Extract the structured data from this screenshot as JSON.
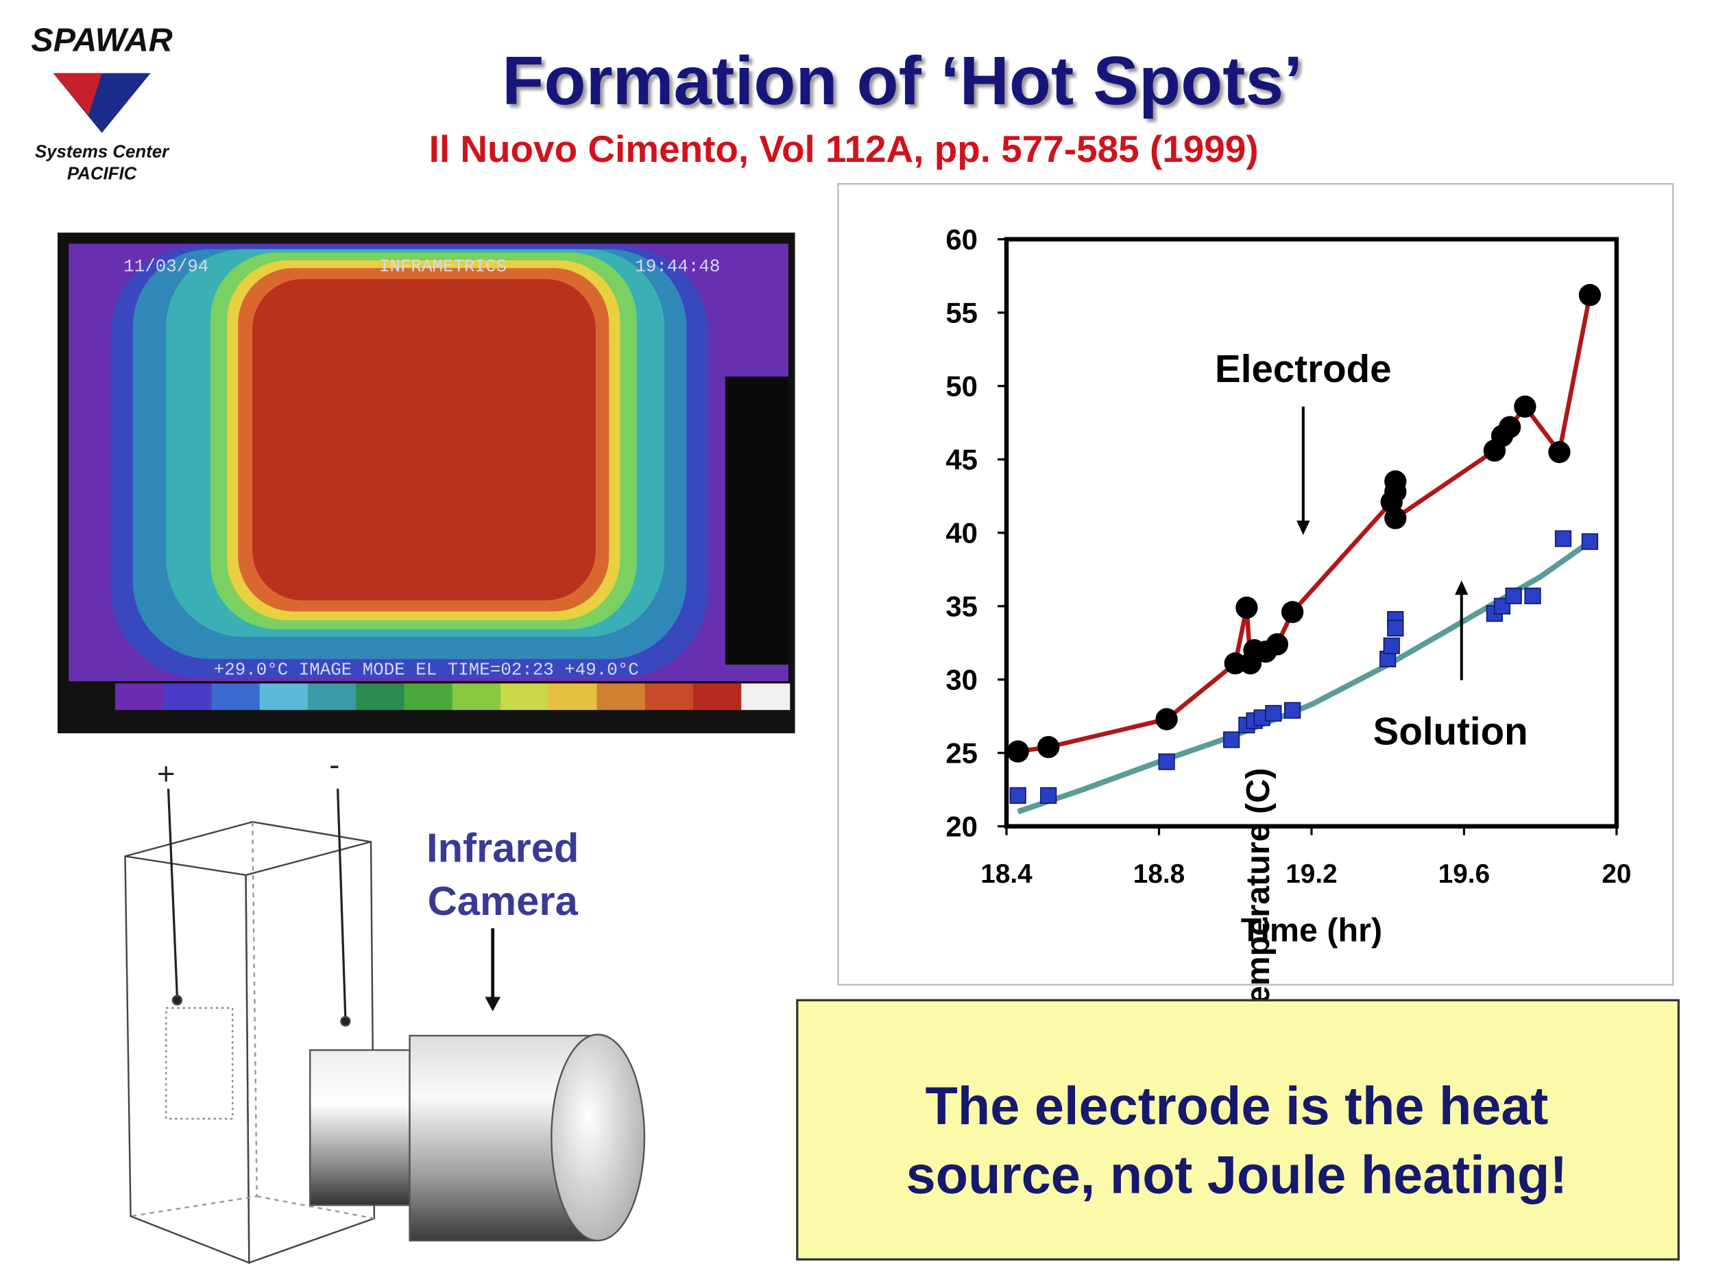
{
  "header": {
    "title": "Formation of ‘Hot Spots’",
    "subtitle": "Il Nuovo Cimento, Vol 112A, pp. 577-585 (1999)"
  },
  "logo": {
    "name": "SPAWAR",
    "line1": "Systems Center",
    "line2": "PACIFIC"
  },
  "thermal_image": {
    "date": "11/03/94",
    "brand": "INFRAMETRICS",
    "time": "19:44:48",
    "status": "+29.0°C IMAGE MODE EL TIME=02:23 +49.0°C"
  },
  "cell_diagram": {
    "plus": "+",
    "minus": "-"
  },
  "camera_label": [
    "Infrared",
    "Camera"
  ],
  "callout": [
    "The electrode is the heat",
    "source, not Joule heating!"
  ],
  "chart_data": {
    "type": "scatter",
    "x_label": "Time (hr)",
    "y_label": "Temperature (C)",
    "annotations": [
      "Electrode",
      "Solution"
    ],
    "xlim": [
      18.4,
      20
    ],
    "ylim": [
      20,
      60
    ],
    "xticks": [
      18.4,
      18.8,
      19.2,
      19.6,
      20
    ],
    "yticks": [
      20,
      25,
      30,
      35,
      40,
      45,
      50,
      55,
      60
    ],
    "series": [
      {
        "line_color": "#b01818",
        "marker": "circle",
        "marker_color": "#000000",
        "x": [
          18.43,
          18.51,
          18.82,
          19.0,
          19.03,
          19.04,
          19.05,
          19.08,
          19.11,
          19.15,
          19.41,
          19.42,
          19.42,
          19.42,
          19.68,
          19.7,
          19.72,
          19.76,
          19.85,
          19.93
        ],
        "values": [
          25.1,
          25.4,
          27.3,
          31.1,
          34.9,
          31.1,
          32.0,
          31.9,
          32.4,
          34.6,
          42.1,
          43.5,
          42.8,
          41.0,
          45.6,
          46.6,
          47.2,
          48.6,
          45.5,
          56.2
        ]
      },
      {
        "marker": "square",
        "marker_color": "#2a3fc8",
        "x": [
          18.43,
          18.51,
          18.82,
          18.99,
          19.03,
          19.05,
          19.07,
          19.1,
          19.15,
          19.4,
          19.41,
          19.42,
          19.42,
          19.68,
          19.7,
          19.73,
          19.78,
          19.86,
          19.93
        ],
        "values": [
          22.1,
          22.1,
          24.4,
          25.9,
          26.9,
          27.2,
          27.4,
          27.7,
          27.9,
          31.4,
          32.3,
          34.1,
          33.5,
          34.5,
          35.0,
          35.7,
          35.7,
          39.6,
          39.4
        ]
      },
      {
        "line_color": "#5a9c98",
        "x": [
          18.43,
          18.6,
          18.8,
          19.0,
          19.2,
          19.4,
          19.6,
          19.8,
          19.92
        ],
        "values": [
          21.0,
          22.5,
          24.4,
          26.2,
          28.3,
          31.0,
          34.0,
          37.0,
          39.2
        ]
      }
    ]
  }
}
